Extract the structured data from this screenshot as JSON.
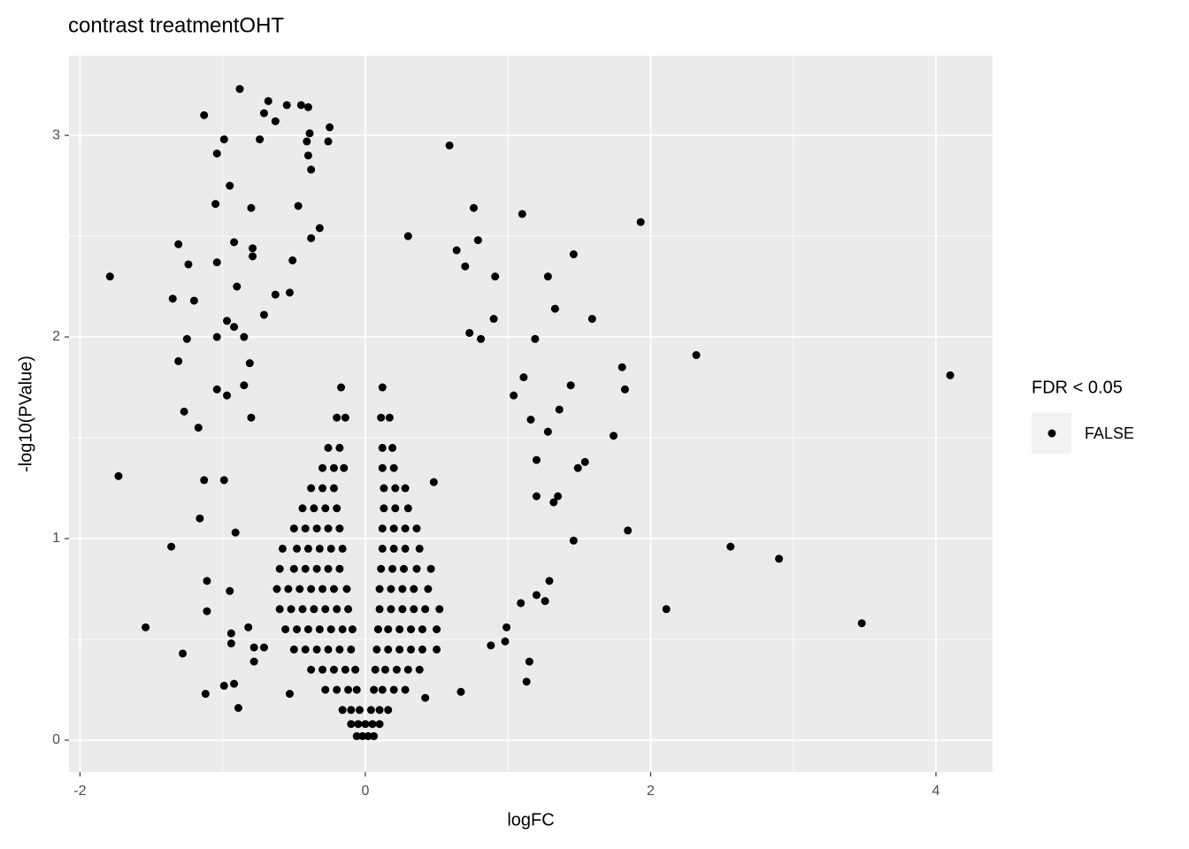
{
  "chart_data": {
    "type": "scatter",
    "title": "contrast treatmentOHT",
    "x_label": "logFC",
    "y_label": "-log10(PValue)",
    "legend_title": "FDR < 0.05",
    "legend_position": "right",
    "grid": true,
    "background": "#ebebeb",
    "point_radius": 4.5,
    "xlim": [
      -2.077,
      4.397
    ],
    "ylim": [
      -0.158,
      3.395
    ],
    "xticks": [
      -2,
      0,
      2,
      4
    ],
    "yticks": [
      0,
      1,
      2,
      3
    ],
    "minor_xticks": [
      -1,
      1,
      3
    ],
    "minor_yticks": [
      0.5,
      1.5,
      2.5
    ],
    "x": [
      -1.79,
      -1.73,
      -1.54,
      -1.36,
      -1.28,
      -1.31,
      -1.31,
      -1.27,
      -1.25,
      -1.13,
      -1.12,
      -1.11,
      -1.04,
      -0.99,
      -0.95,
      -1.05,
      -0.88,
      -0.9,
      -0.89,
      -0.92,
      -0.99,
      -1.04,
      -1.04,
      -1.04,
      -1.35,
      -1.2,
      -1.24,
      -1.17,
      -1.13,
      -1.11,
      -1.16,
      -0.92,
      -0.8,
      -0.74,
      -0.71,
      -0.68,
      -0.63,
      -0.55,
      -0.45,
      -0.4,
      -0.41,
      -0.39,
      -0.4,
      -0.38,
      -0.25,
      -0.26,
      -0.47,
      -0.32,
      -0.38,
      -0.51,
      -0.79,
      -0.79,
      -0.71,
      -0.63,
      -0.53,
      -0.85,
      -0.92,
      -0.97,
      -0.85,
      -0.97,
      -0.81,
      -0.8,
      -0.91,
      -0.99,
      -0.94,
      -0.95,
      -0.94,
      -0.82,
      -0.78,
      -0.78,
      -0.71,
      -0.53,
      0.59,
      0.3,
      0.76,
      1.1,
      1.93,
      1.46,
      0.64,
      0.79,
      0.7,
      1.28,
      0.91,
      1.33,
      1.59,
      0.9,
      1.19,
      0.73,
      0.81,
      2.32,
      1.8,
      1.82,
      1.44,
      1.11,
      1.04,
      1.36,
      4.1,
      1.74,
      1.28,
      1.54,
      1.49,
      1.16,
      1.2,
      1.35,
      1.32,
      1.2,
      1.84,
      1.46,
      2.56,
      2.9,
      2.11,
      3.48,
      1.29,
      1.2,
      1.26,
      1.09,
      1.15,
      1.13,
      0.99,
      0.98,
      0.88,
      0.67,
      0.42,
      0.48,
      -0.06,
      -0.02,
      0.02,
      0.06,
      -0.1,
      -0.05,
      0,
      0.05,
      0.1,
      -0.16,
      -0.1,
      -0.04,
      0.04,
      0.1,
      0.16,
      -0.28,
      -0.2,
      -0.12,
      -0.06,
      0.06,
      0.12,
      0.2,
      0.28,
      -0.38,
      -0.3,
      -0.22,
      -0.14,
      -0.07,
      0.07,
      0.14,
      0.22,
      0.3,
      0.38,
      -0.5,
      -0.42,
      -0.34,
      -0.26,
      -0.18,
      -0.1,
      0.08,
      0.16,
      0.24,
      0.32,
      0.4,
      0.5,
      -0.56,
      -0.48,
      -0.4,
      -0.32,
      -0.24,
      -0.16,
      -0.09,
      0.09,
      0.16,
      0.24,
      0.32,
      0.4,
      0.5,
      -0.6,
      -0.52,
      -0.44,
      -0.36,
      -0.28,
      -0.2,
      -0.12,
      0.1,
      0.18,
      0.26,
      0.34,
      0.42,
      0.52,
      -0.62,
      -0.54,
      -0.46,
      -0.38,
      -0.3,
      -0.22,
      -0.13,
      0.1,
      0.18,
      0.26,
      0.34,
      0.44,
      -0.6,
      -0.5,
      -0.42,
      -0.34,
      -0.26,
      -0.18,
      0.11,
      0.19,
      0.27,
      0.36,
      0.46,
      -0.58,
      -0.48,
      -0.4,
      -0.32,
      -0.24,
      -0.16,
      0.12,
      0.2,
      0.28,
      0.38,
      -0.5,
      -0.42,
      -0.34,
      -0.26,
      -0.18,
      0.12,
      0.2,
      0.28,
      0.36,
      -0.44,
      -0.36,
      -0.28,
      -0.2,
      0.13,
      0.21,
      0.3,
      -0.38,
      -0.3,
      -0.22,
      0.13,
      0.21,
      0.28,
      -0.3,
      -0.22,
      -0.15,
      0.12,
      0.2,
      -0.26,
      -0.18,
      0.12,
      0.19,
      -0.2,
      -0.14,
      0.11,
      0.17,
      -0.17,
      0.12
    ],
    "series": [
      {
        "name": "FALSE",
        "color": "#000000",
        "values": [
          2.3,
          1.31,
          0.56,
          0.96,
          0.43,
          2.46,
          1.88,
          1.63,
          1.99,
          3.1,
          0.23,
          0.64,
          2.91,
          2.98,
          2.75,
          2.66,
          3.23,
          2.25,
          0.16,
          0.28,
          0.27,
          2.37,
          2.0,
          1.74,
          2.19,
          2.18,
          2.36,
          1.55,
          1.29,
          0.79,
          1.1,
          2.47,
          2.64,
          2.98,
          3.11,
          3.17,
          3.07,
          3.15,
          3.15,
          3.14,
          2.97,
          3.01,
          2.9,
          2.83,
          3.04,
          2.97,
          2.65,
          2.54,
          2.49,
          2.38,
          2.44,
          2.4,
          2.11,
          2.21,
          2.22,
          2.0,
          2.05,
          2.08,
          1.76,
          1.71,
          1.87,
          1.6,
          1.03,
          1.29,
          0.53,
          0.74,
          0.48,
          0.56,
          0.46,
          0.39,
          0.46,
          0.23,
          2.95,
          2.5,
          2.64,
          2.61,
          2.57,
          2.41,
          2.43,
          2.48,
          2.35,
          2.3,
          2.3,
          2.14,
          2.09,
          2.09,
          1.99,
          2.02,
          1.99,
          1.91,
          1.85,
          1.74,
          1.76,
          1.8,
          1.71,
          1.64,
          1.81,
          1.51,
          1.53,
          1.38,
          1.35,
          1.59,
          1.39,
          1.21,
          1.18,
          1.21,
          1.04,
          0.99,
          0.96,
          0.9,
          0.65,
          0.58,
          0.79,
          0.72,
          0.69,
          0.68,
          0.39,
          0.29,
          0.56,
          0.49,
          0.47,
          0.24,
          0.21,
          1.28,
          0.02,
          0.02,
          0.02,
          0.02,
          0.08,
          0.08,
          0.08,
          0.08,
          0.08,
          0.15,
          0.15,
          0.15,
          0.15,
          0.15,
          0.15,
          0.25,
          0.25,
          0.25,
          0.25,
          0.25,
          0.25,
          0.25,
          0.25,
          0.35,
          0.35,
          0.35,
          0.35,
          0.35,
          0.35,
          0.35,
          0.35,
          0.35,
          0.35,
          0.45,
          0.45,
          0.45,
          0.45,
          0.45,
          0.45,
          0.45,
          0.45,
          0.45,
          0.45,
          0.45,
          0.45,
          0.55,
          0.55,
          0.55,
          0.55,
          0.55,
          0.55,
          0.55,
          0.55,
          0.55,
          0.55,
          0.55,
          0.55,
          0.55,
          0.65,
          0.65,
          0.65,
          0.65,
          0.65,
          0.65,
          0.65,
          0.65,
          0.65,
          0.65,
          0.65,
          0.65,
          0.65,
          0.75,
          0.75,
          0.75,
          0.75,
          0.75,
          0.75,
          0.75,
          0.75,
          0.75,
          0.75,
          0.75,
          0.75,
          0.85,
          0.85,
          0.85,
          0.85,
          0.85,
          0.85,
          0.85,
          0.85,
          0.85,
          0.85,
          0.85,
          0.95,
          0.95,
          0.95,
          0.95,
          0.95,
          0.95,
          0.95,
          0.95,
          0.95,
          0.95,
          1.05,
          1.05,
          1.05,
          1.05,
          1.05,
          1.05,
          1.05,
          1.05,
          1.05,
          1.15,
          1.15,
          1.15,
          1.15,
          1.15,
          1.15,
          1.15,
          1.25,
          1.25,
          1.25,
          1.25,
          1.25,
          1.25,
          1.35,
          1.35,
          1.35,
          1.35,
          1.35,
          1.45,
          1.45,
          1.45,
          1.45,
          1.6,
          1.6,
          1.6,
          1.6,
          1.75,
          1.75
        ]
      }
    ]
  }
}
